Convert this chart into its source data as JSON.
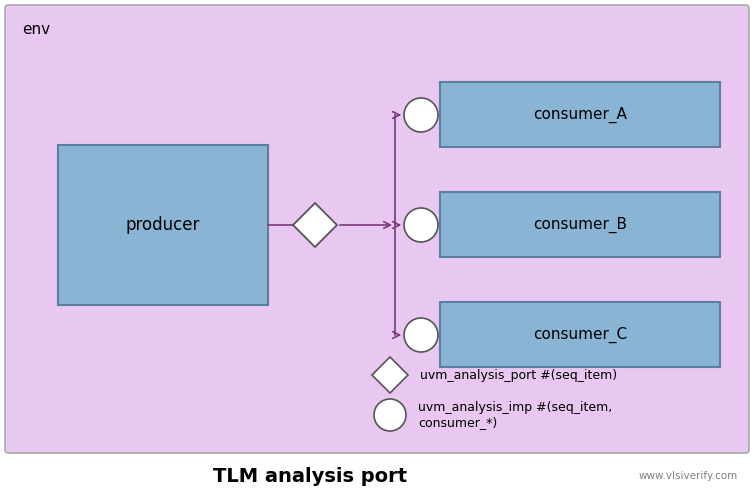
{
  "bg_outer": "#ffffff",
  "bg_env": "#e8c8f0",
  "bg_env_border": "#aaaaaa",
  "box_fill": "#8ab4d4",
  "box_edge": "#5a7fa0",
  "line_color": "#7a3a7a",
  "arrow_color": "#7a3a7a",
  "circle_fill": "#ffffff",
  "circle_edge": "#555555",
  "diamond_fill": "#ffffff",
  "diamond_edge": "#555555",
  "title": "TLM analysis port",
  "title_fontsize": 14,
  "env_label": "env",
  "watermark": "www.vlsiverify.com",
  "producer_label": "producer",
  "consumer_labels": [
    "consumer_A",
    "consumer_B",
    "consumer_C"
  ],
  "legend_port_label": "uvm_analysis_port #(seq_item)",
  "legend_imp_label": "uvm_analysis_imp #(seq_item,\nconsumer_*)"
}
